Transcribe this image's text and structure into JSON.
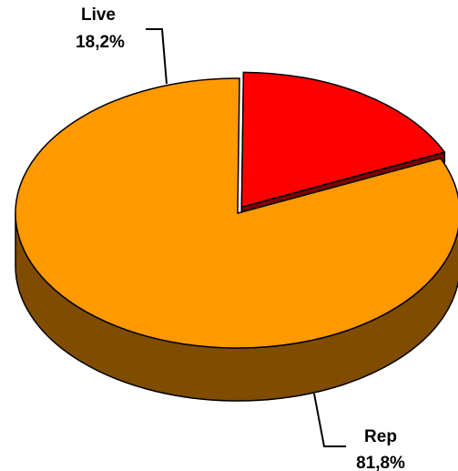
{
  "chart_data": {
    "type": "pie",
    "style": "3d-exploded",
    "slices": [
      {
        "label": "Live",
        "percent_label": "18,2%",
        "value": 18.2,
        "color": "#FF0000",
        "side_color": "#7F0000"
      },
      {
        "label": "Rep",
        "percent_label": "81,8%",
        "value": 81.8,
        "color": "#FF9900",
        "side_color": "#7F4C00"
      }
    ],
    "exploded": "Live",
    "legend": "none"
  }
}
